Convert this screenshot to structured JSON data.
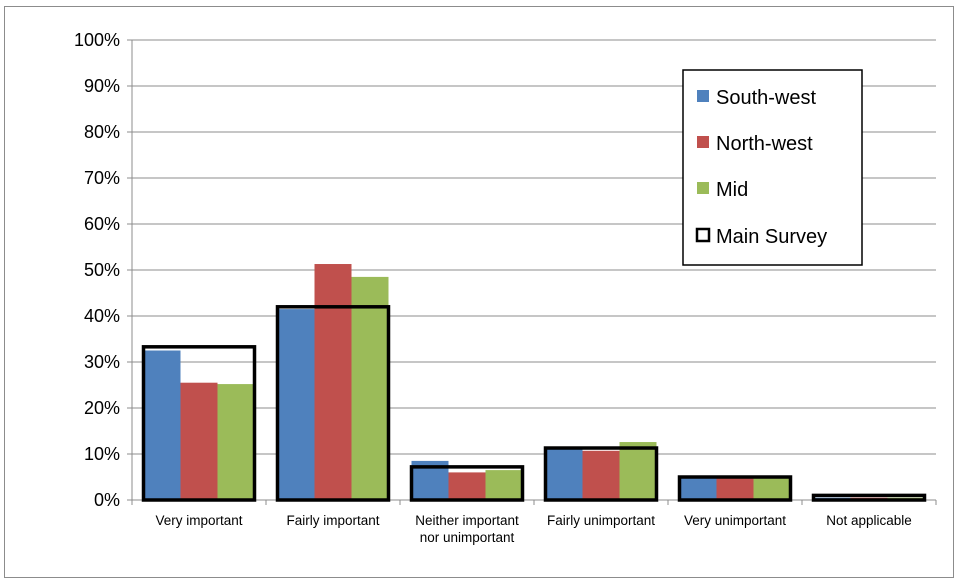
{
  "chart_data": {
    "type": "bar",
    "categories": [
      [
        "Very important"
      ],
      [
        "Fairly important"
      ],
      [
        "Neither important",
        "nor unimportant"
      ],
      [
        "Fairly unimportant"
      ],
      [
        "Very unimportant"
      ],
      [
        "Not applicable"
      ]
    ],
    "series": [
      {
        "name": "South-west",
        "values": [
          32.5,
          41.5,
          8.5,
          11.0,
          5.0,
          0.5
        ],
        "color": "#4f81bd"
      },
      {
        "name": "North-west",
        "values": [
          25.5,
          51.3,
          6.0,
          10.7,
          5.0,
          0.5
        ],
        "color": "#c0504d"
      },
      {
        "name": "Mid",
        "values": [
          25.2,
          48.5,
          6.5,
          12.6,
          5.0,
          0.5
        ],
        "color": "#9bbb59"
      }
    ],
    "outline_series": {
      "name": "Main Survey",
      "values": [
        33.3,
        42.0,
        7.2,
        11.3,
        5.0,
        1.0
      ],
      "color": "#000000"
    },
    "yticks": [
      "0%",
      "10%",
      "20%",
      "30%",
      "40%",
      "50%",
      "60%",
      "70%",
      "80%",
      "90%",
      "100%"
    ],
    "ylim": [
      0,
      100
    ],
    "grid": true,
    "legend_position": "top-right"
  }
}
